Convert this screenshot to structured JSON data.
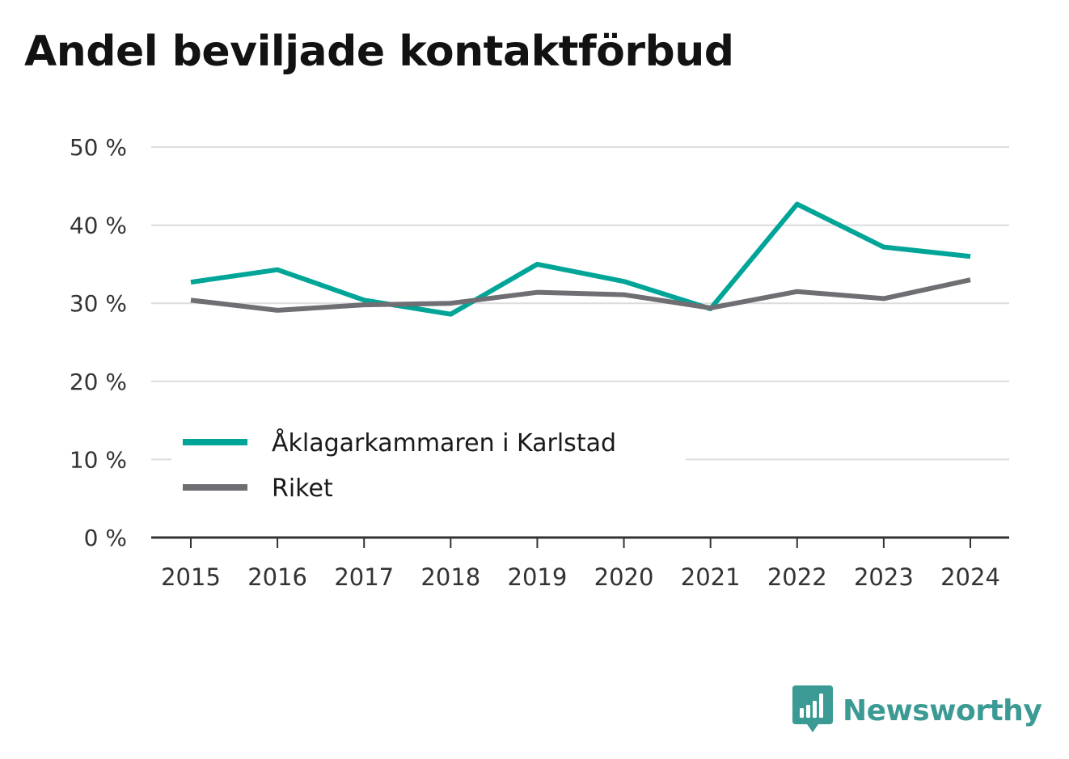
{
  "title": "Andel beviljade kontaktförbud",
  "brand": {
    "name": "Newsworthy",
    "icon": "newsworthy-logo-icon",
    "color": "#3c9a94"
  },
  "chart_data": {
    "type": "line",
    "title": "Andel beviljade kontaktförbud",
    "x": [
      "2015",
      "2016",
      "2017",
      "2018",
      "2019",
      "2020",
      "2021",
      "2022",
      "2023",
      "2024"
    ],
    "ylim": [
      0,
      50
    ],
    "yticks": [
      0,
      10,
      20,
      30,
      40,
      50
    ],
    "ytick_labels": [
      "0 %",
      "10 %",
      "20 %",
      "30 %",
      "40 %",
      "50 %"
    ],
    "grid": true,
    "legend_position": "lower-left",
    "series": [
      {
        "name": "Åklagarkammaren i Karlstad",
        "color": "#00a598",
        "values": [
          32.7,
          34.3,
          30.4,
          28.6,
          35.0,
          32.8,
          29.3,
          42.7,
          37.2,
          36.0
        ]
      },
      {
        "name": "Riket",
        "color": "#6f6e73",
        "values": [
          30.4,
          29.1,
          29.8,
          30.0,
          31.4,
          31.1,
          29.4,
          31.5,
          30.6,
          33.0
        ]
      }
    ]
  }
}
